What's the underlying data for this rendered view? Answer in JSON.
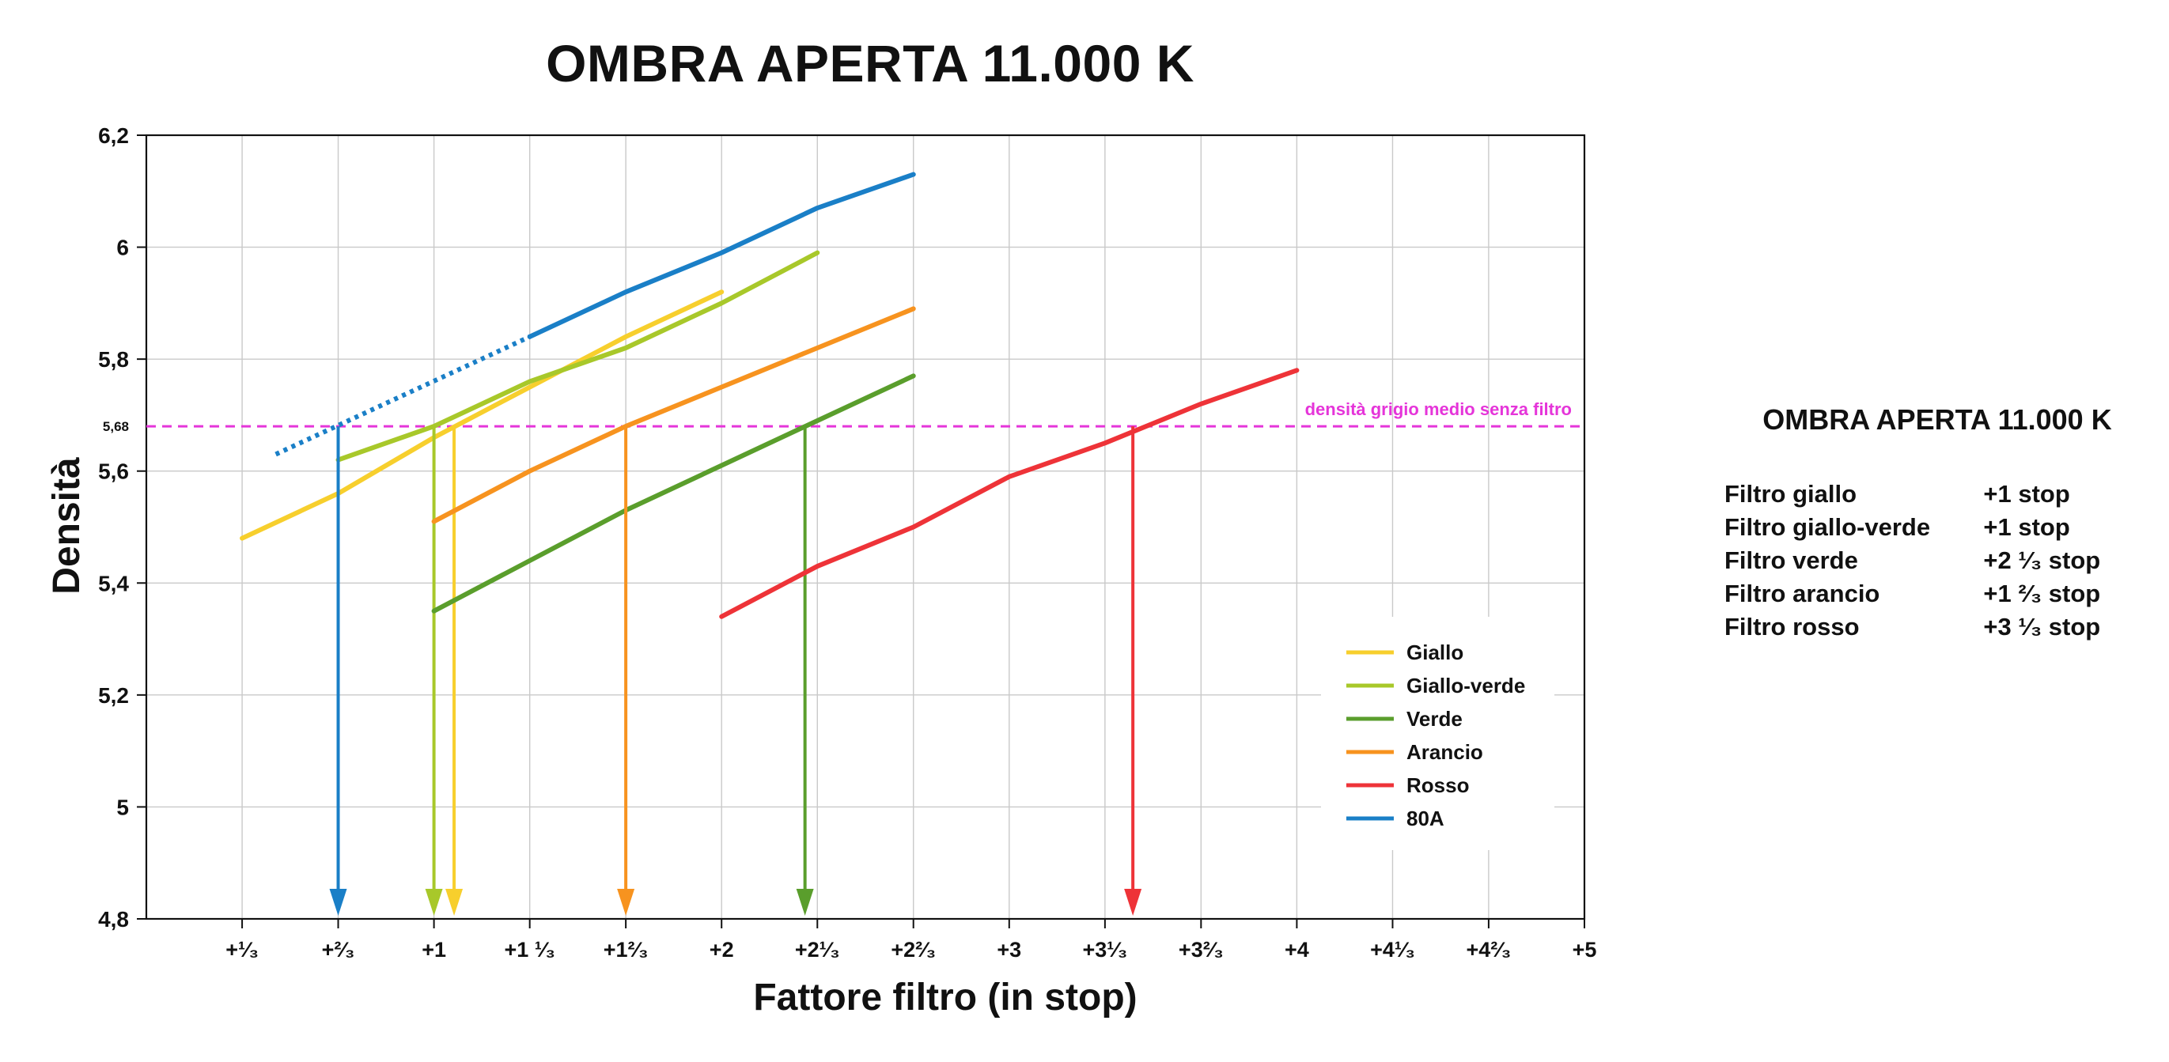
{
  "chart_data": {
    "type": "line",
    "title": "OMBRA APERTA 11.000 K",
    "xlabel": "Fattore filtro (in stop)",
    "ylabel": "Densità",
    "xlim": [
      0,
      5
    ],
    "ylim": [
      4.8,
      6.2
    ],
    "x_ticks": [
      0.333,
      0.667,
      1,
      1.333,
      1.667,
      2,
      2.333,
      2.667,
      3,
      3.333,
      3.667,
      4,
      4.333,
      4.667,
      5
    ],
    "x_tick_labels": [
      "+¹⁄₃",
      "+²⁄₃",
      "+1",
      "+1 ¹⁄₃",
      "+1²⁄₃",
      "+2",
      "+2¹⁄₃",
      "+2²⁄₃",
      "+3",
      "+3¹⁄₃",
      "+3²⁄₃",
      "+4",
      "+4¹⁄₃",
      "+4²⁄₃",
      "+5"
    ],
    "y_ticks": [
      4.8,
      5,
      5.2,
      5.4,
      5.6,
      5.8,
      6,
      6.2
    ],
    "y_tick_labels": [
      "4,8",
      "5",
      "5,2",
      "5,4",
      "5,6",
      "5,8",
      "6",
      "6,2"
    ],
    "grid": true,
    "legend_position": "bottom-right",
    "reference_line": {
      "y": 5.68,
      "y_label": "5,68",
      "label": "densità grigio medio senza filtro",
      "color": "#e535d9"
    },
    "series": [
      {
        "name": "Giallo",
        "color": "#f7cf2d",
        "x": [
          0.333,
          0.667,
          1,
          1.333,
          1.667,
          2
        ],
        "y": [
          5.48,
          5.56,
          5.66,
          5.75,
          5.84,
          5.92
        ],
        "marker_x": 1.07
      },
      {
        "name": "Giallo-verde",
        "color": "#a8c82a",
        "x": [
          0.667,
          1,
          1.333,
          1.667,
          2,
          2.333
        ],
        "y": [
          5.62,
          5.68,
          5.76,
          5.82,
          5.9,
          5.99
        ],
        "marker_x": 1.0
      },
      {
        "name": "Verde",
        "color": "#5a9e2c",
        "x": [
          1,
          1.333,
          1.667,
          2,
          2.333,
          2.667
        ],
        "y": [
          5.35,
          5.44,
          5.53,
          5.61,
          5.69,
          5.77
        ],
        "marker_x": 2.29
      },
      {
        "name": "Arancio",
        "color": "#f7931f",
        "x": [
          1,
          1.333,
          1.667,
          2,
          2.333,
          2.667
        ],
        "y": [
          5.51,
          5.6,
          5.68,
          5.75,
          5.82,
          5.89
        ],
        "marker_x": 1.667
      },
      {
        "name": "Rosso",
        "color": "#ee3338",
        "x": [
          2,
          2.333,
          2.667,
          3,
          3.333,
          3.667,
          4
        ],
        "y": [
          5.34,
          5.43,
          5.5,
          5.59,
          5.65,
          5.72,
          5.78
        ],
        "marker_x": 3.43
      },
      {
        "name": "80A",
        "color": "#1a7fc7",
        "x": [
          1.333,
          1.667,
          2,
          2.333,
          2.667
        ],
        "y": [
          5.84,
          5.92,
          5.99,
          6.07,
          6.13
        ],
        "dotted_x": [
          0.45,
          1.333
        ],
        "dotted_y": [
          5.63,
          5.84
        ],
        "marker_x": 0.667
      }
    ]
  },
  "summary": {
    "title": "OMBRA APERTA 11.000 K",
    "rows": [
      {
        "filter": "Filtro giallo",
        "stops": "+1 stop"
      },
      {
        "filter": "Filtro giallo-verde",
        "stops": "+1 stop"
      },
      {
        "filter": "Filtro verde",
        "stops": "+2 ¹⁄₃ stop"
      },
      {
        "filter": "Filtro arancio",
        "stops": "+1 ²⁄₃ stop"
      },
      {
        "filter": "Filtro rosso",
        "stops": "+3 ¹⁄₃ stop"
      }
    ]
  }
}
